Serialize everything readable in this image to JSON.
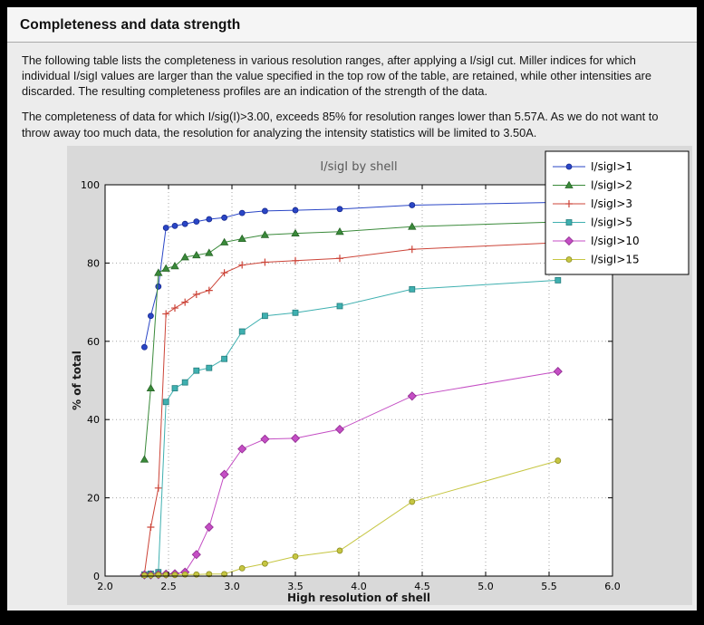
{
  "header": {
    "title": "Completeness and data strength"
  },
  "paragraphs": [
    "The following table lists the completeness in various resolution ranges, after applying a I/sigI cut. Miller indices for which individual I/sigI values are larger than the value specified in the top row of the table, are retained, while other intensities are discarded. The resulting completeness profiles are an indication of the strength of the data.",
    "The completeness of data for which I/sig(I)>3.00, exceeds  85% for resolution ranges lower than 5.57A. As we do not want to throw away too much data, the resolution for analyzing the intensity statistics will be limited to 3.50A."
  ],
  "colors": {
    "page_background": "#ececec",
    "figure_background": "#d9d9d9",
    "plot_background": "#ffffff",
    "grid": "#a6a6a6",
    "axis_border": "#000000",
    "chart_title": "#595959",
    "frame": "#000000"
  },
  "chart_data": {
    "type": "line",
    "title": "I/sigI by shell",
    "xlabel": "High resolution of shell",
    "ylabel": "% of total",
    "xlim": [
      2.0,
      6.0
    ],
    "ylim": [
      0,
      100
    ],
    "x_ticks": [
      2.0,
      2.5,
      3.0,
      3.5,
      4.0,
      4.5,
      5.0,
      5.5,
      6.0
    ],
    "x_tick_labels": [
      "2.0",
      "2.5",
      "3.0",
      "3.5",
      "4.0",
      "4.5",
      "5.0",
      "5.5",
      "6.0"
    ],
    "y_ticks": [
      0,
      20,
      40,
      60,
      80,
      100
    ],
    "y_tick_labels": [
      "0",
      "20",
      "40",
      "60",
      "80",
      "100"
    ],
    "grid": "dotted",
    "legend_position": "upper right",
    "x": [
      2.31,
      2.36,
      2.42,
      2.48,
      2.55,
      2.63,
      2.72,
      2.82,
      2.94,
      3.08,
      3.26,
      3.5,
      3.85,
      4.42,
      5.57
    ],
    "series": [
      {
        "name": "I/sigI>1",
        "color": "#2a46c6",
        "edge": "#16288f",
        "marker": "circle",
        "values": [
          58.5,
          66.5,
          74.0,
          89.0,
          89.5,
          90.0,
          90.6,
          91.2,
          91.6,
          92.8,
          93.3,
          93.5,
          93.8,
          94.8,
          95.5
        ]
      },
      {
        "name": "I/sigI>2",
        "color": "#3a8a3a",
        "edge": "#266426",
        "marker": "triangle",
        "values": [
          29.8,
          48.0,
          77.5,
          78.6,
          79.2,
          81.5,
          82.0,
          82.6,
          85.3,
          86.2,
          87.2,
          87.6,
          88.0,
          89.3,
          90.5
        ]
      },
      {
        "name": "I/sigI>3",
        "color": "#cc4438",
        "edge": "#cc4438",
        "marker": "plus",
        "values": [
          0.5,
          12.5,
          22.5,
          67.0,
          68.5,
          70.0,
          72.0,
          73.0,
          77.5,
          79.5,
          80.2,
          80.6,
          81.2,
          83.5,
          85.2
        ]
      },
      {
        "name": "I/sigI>5",
        "color": "#3fb0b0",
        "edge": "#247d7d",
        "marker": "square",
        "values": [
          0.4,
          0.6,
          1.0,
          44.5,
          48.0,
          49.5,
          52.5,
          53.2,
          55.5,
          62.5,
          66.5,
          67.3,
          69.0,
          73.3,
          75.6
        ]
      },
      {
        "name": "I/sigI>10",
        "color": "#c44ec4",
        "edge": "#8f2a8f",
        "marker": "diamond",
        "values": [
          0.3,
          0.3,
          0.4,
          0.5,
          0.6,
          1.0,
          5.5,
          12.5,
          26.0,
          32.5,
          35.0,
          35.2,
          37.5,
          46.0,
          52.3
        ]
      },
      {
        "name": "I/sigI>15",
        "color": "#c6c642",
        "edge": "#8c8c1e",
        "marker": "circle",
        "values": [
          0.2,
          0.2,
          0.3,
          0.3,
          0.3,
          0.4,
          0.4,
          0.5,
          0.5,
          2.0,
          3.2,
          5.0,
          6.5,
          19.0,
          29.5
        ]
      }
    ]
  }
}
